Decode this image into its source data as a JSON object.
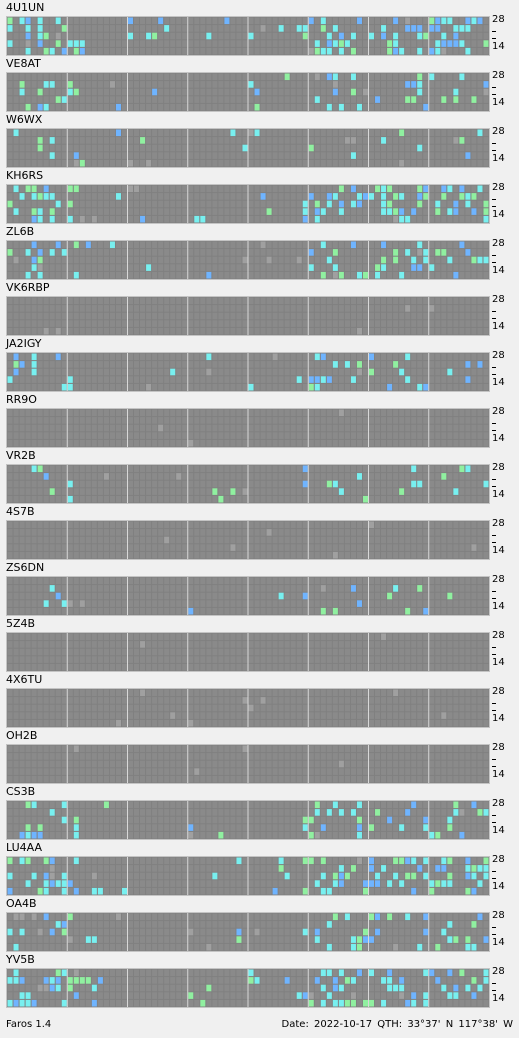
{
  "colors": {
    "background": "#f0f0f0",
    "grid_bg": "#808080",
    "cell_off": "#8a8a8a",
    "cell_dim": "#a0a0a0",
    "cell_blue": "#6fb4ff",
    "cell_cyan": "#78f0f0",
    "cell_green": "#90f0a0",
    "divider": "#d8d8d8"
  },
  "scale": {
    "top": "28",
    "bottom": "14"
  },
  "stations": [
    {
      "name": "4U1UN",
      "activity": "high"
    },
    {
      "name": "VE8AT",
      "activity": "medium"
    },
    {
      "name": "W6WX",
      "activity": "low"
    },
    {
      "name": "KH6RS",
      "activity": "high"
    },
    {
      "name": "ZL6B",
      "activity": "medium"
    },
    {
      "name": "VK6RBP",
      "activity": "none"
    },
    {
      "name": "JA2IGY",
      "activity": "medium"
    },
    {
      "name": "RR9O",
      "activity": "none"
    },
    {
      "name": "VR2B",
      "activity": "low"
    },
    {
      "name": "4S7B",
      "activity": "none"
    },
    {
      "name": "ZS6DN",
      "activity": "low"
    },
    {
      "name": "5Z4B",
      "activity": "none"
    },
    {
      "name": "4X6TU",
      "activity": "none"
    },
    {
      "name": "OH2B",
      "activity": "none"
    },
    {
      "name": "CS3B",
      "activity": "medium"
    },
    {
      "name": "LU4AA",
      "activity": "high"
    },
    {
      "name": "OA4B",
      "activity": "medium"
    },
    {
      "name": "YV5B",
      "activity": "high"
    }
  ],
  "footer": {
    "app": "Faros 1.4",
    "info": "Date: 2022-10-17    QTH: 33°37' N  117°38' W"
  }
}
